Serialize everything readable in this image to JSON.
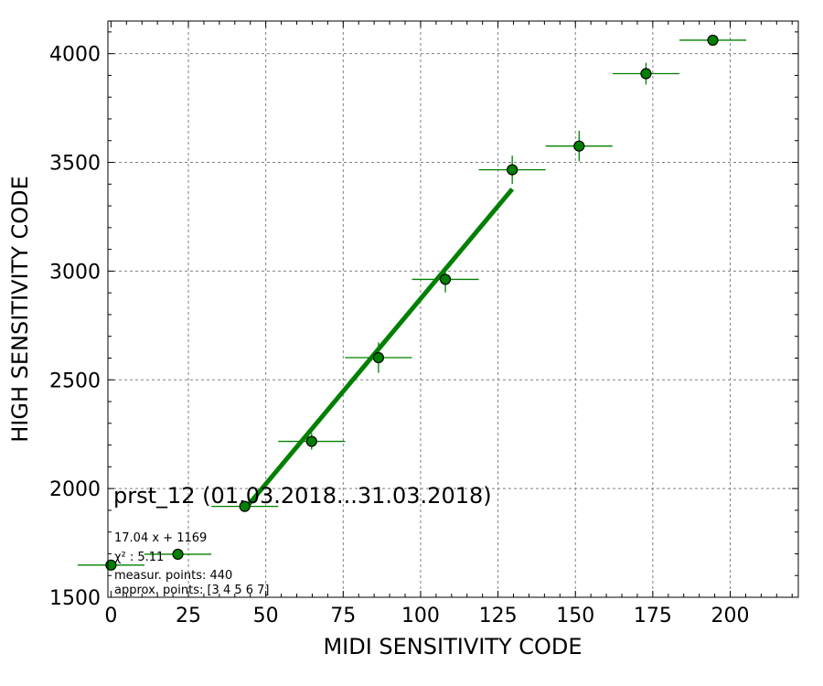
{
  "chart_data": {
    "type": "scatter",
    "title": "",
    "xlabel": "MIDI SENSITIVITY CODE",
    "ylabel": "HIGH SENSITIVITY CODE",
    "xlim": [
      -1,
      222
    ],
    "ylim": [
      1500,
      4150
    ],
    "grid": true,
    "x_ticks": [
      0,
      25,
      50,
      75,
      100,
      125,
      150,
      175,
      200
    ],
    "y_ticks": [
      1500,
      2000,
      2500,
      3000,
      3500,
      4000
    ],
    "x_tick_labels": [
      "0",
      "25",
      "50",
      "75",
      "100",
      "125",
      "150",
      "175",
      "200"
    ],
    "y_tick_labels": [
      "1500",
      "2000",
      "2500",
      "3000",
      "3500",
      "4000"
    ],
    "series": [
      {
        "kind": "points_with_error_bars",
        "color": "#008000",
        "points": [
          {
            "x": 0,
            "y": 1648,
            "xerr": 10.8,
            "yerr": 12
          },
          {
            "x": 21.6,
            "y": 1698,
            "xerr": 10.8,
            "yerr": 12
          },
          {
            "x": 43.2,
            "y": 1918,
            "xerr": 10.8,
            "yerr": 12
          },
          {
            "x": 64.8,
            "y": 2217,
            "xerr": 10.8,
            "yerr": 38
          },
          {
            "x": 86.4,
            "y": 2602,
            "xerr": 10.8,
            "yerr": 70
          },
          {
            "x": 108.0,
            "y": 2962,
            "xerr": 10.8,
            "yerr": 60
          },
          {
            "x": 129.6,
            "y": 3466,
            "xerr": 10.8,
            "yerr": 65
          },
          {
            "x": 151.2,
            "y": 3575,
            "xerr": 10.8,
            "yerr": 70
          },
          {
            "x": 172.8,
            "y": 3908,
            "xerr": 10.8,
            "yerr": 50
          },
          {
            "x": 194.4,
            "y": 4062,
            "xerr": 10.8,
            "yerr": 15
          }
        ]
      },
      {
        "kind": "fit_line",
        "color": "#008000",
        "slope": 17.04,
        "intercept": 1169,
        "x_range": [
          43.2,
          129.6
        ]
      }
    ],
    "annotations": {
      "label": "prst_12 (01.03.2018...31.03.2018)",
      "fit_equation": "17.04 x + 1169",
      "chi2_label": "χ² : 5.11",
      "measur_points": "measur. points: 440",
      "approx_points": "approx. points: [3 4 5 6 7]"
    }
  }
}
